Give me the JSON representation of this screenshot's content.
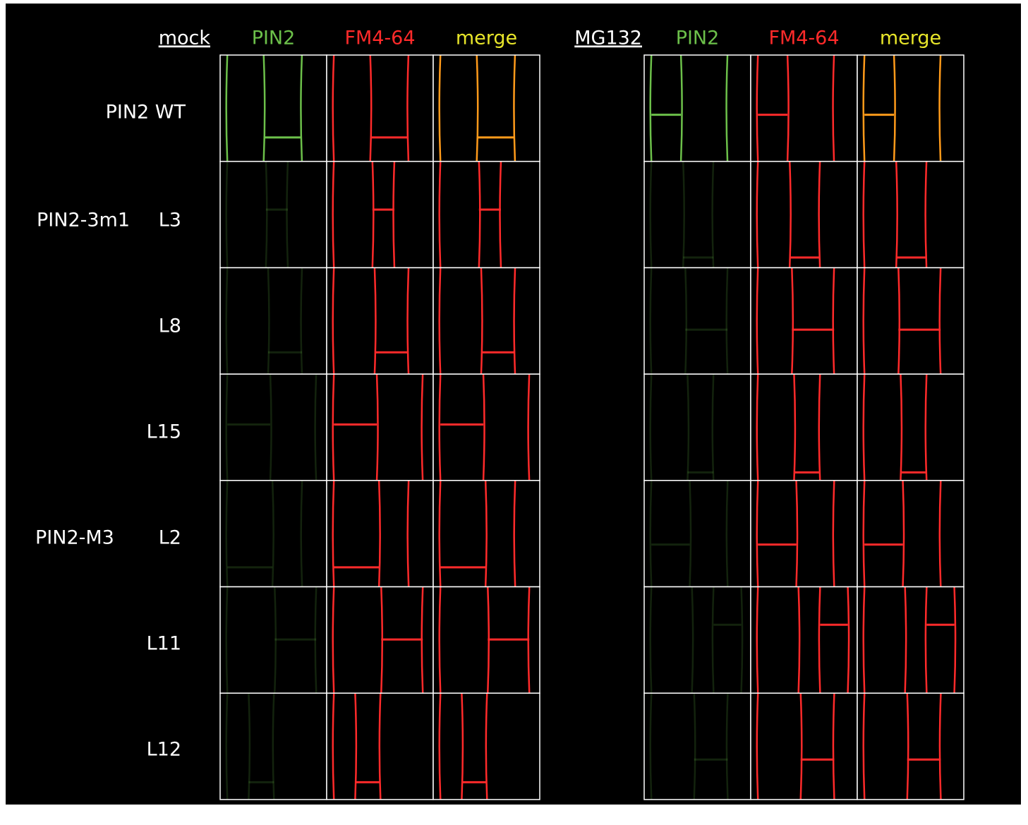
{
  "groups": [
    {
      "condition": "mock",
      "channels": [
        {
          "name": "PIN2",
          "color": "#6cc04a"
        },
        {
          "name": "FM4-64",
          "color": "#ff2a2a"
        },
        {
          "name": "merge",
          "color": "#e8e62a"
        }
      ]
    },
    {
      "condition": "MG132",
      "channels": [
        {
          "name": "PIN2",
          "color": "#6cc04a"
        },
        {
          "name": "FM4-64",
          "color": "#ff2a2a"
        },
        {
          "name": "merge",
          "color": "#e8e62a"
        }
      ]
    }
  ],
  "rows": [
    {
      "label": "PIN2 WT"
    },
    {
      "construct": "PIN2-3m1",
      "line": "L3"
    },
    {
      "line": "L8"
    },
    {
      "line": "L15"
    },
    {
      "construct": "PIN2-M3",
      "line": "L2"
    },
    {
      "line": "L11"
    },
    {
      "line": "L12"
    }
  ]
}
